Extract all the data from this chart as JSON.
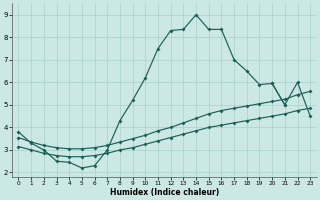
{
  "xlabel": "Humidex (Indice chaleur)",
  "xlim": [
    -0.5,
    23.5
  ],
  "ylim": [
    1.8,
    9.5
  ],
  "xticks": [
    0,
    1,
    2,
    3,
    4,
    5,
    6,
    7,
    8,
    9,
    10,
    11,
    12,
    13,
    14,
    15,
    16,
    17,
    18,
    19,
    20,
    21,
    22,
    23
  ],
  "yticks": [
    2,
    3,
    4,
    5,
    6,
    7,
    8,
    9
  ],
  "bg_color": "#cce8e5",
  "grid_color": "#aad0cc",
  "line_color": "#1a5f58",
  "curve1_x": [
    0,
    1,
    2,
    3,
    4,
    5,
    6,
    7,
    8,
    9,
    10,
    11,
    12,
    13,
    14,
    15,
    16,
    17,
    18,
    19,
    20,
    21
  ],
  "curve1_y": [
    3.8,
    3.3,
    3.0,
    2.5,
    2.45,
    2.2,
    2.3,
    3.0,
    4.3,
    5.2,
    6.2,
    7.5,
    8.3,
    8.35,
    9.0,
    8.35,
    8.35,
    7.0,
    6.5,
    5.9,
    5.95,
    5.0
  ],
  "curve2_x": [
    20,
    21,
    22,
    23
  ],
  "curve2_y": [
    5.95,
    5.0,
    6.0,
    4.5
  ],
  "curve3_x": [
    0,
    1,
    2,
    3,
    4,
    5,
    6,
    7,
    8,
    9,
    10,
    11,
    12,
    13,
    14,
    15,
    16,
    17,
    18,
    19,
    20,
    21,
    22,
    23
  ],
  "curve3_y": [
    3.55,
    3.35,
    3.2,
    3.1,
    3.05,
    3.05,
    3.1,
    3.2,
    3.35,
    3.5,
    3.65,
    3.85,
    4.0,
    4.2,
    4.4,
    4.6,
    4.75,
    4.85,
    4.95,
    5.05,
    5.15,
    5.25,
    5.45,
    5.6
  ],
  "curve4_x": [
    0,
    1,
    2,
    3,
    4,
    5,
    6,
    7,
    8,
    9,
    10,
    11,
    12,
    13,
    14,
    15,
    16,
    17,
    18,
    19,
    20,
    21,
    22,
    23
  ],
  "curve4_y": [
    3.15,
    3.0,
    2.85,
    2.75,
    2.7,
    2.7,
    2.75,
    2.85,
    3.0,
    3.1,
    3.25,
    3.4,
    3.55,
    3.7,
    3.85,
    4.0,
    4.1,
    4.2,
    4.3,
    4.4,
    4.5,
    4.6,
    4.75,
    4.85
  ]
}
